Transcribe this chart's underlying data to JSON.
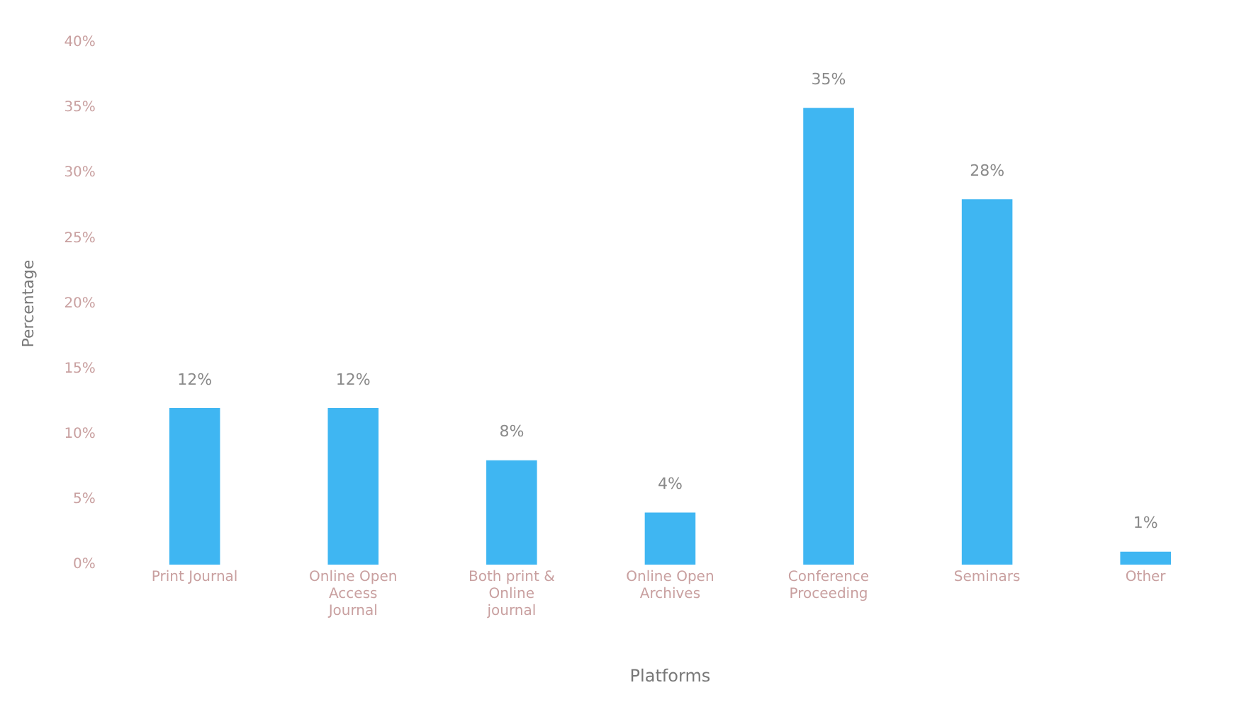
{
  "chart_data": {
    "type": "bar",
    "xlabel": "Platforms",
    "ylabel": "Percentage",
    "categories": [
      "Print Journal",
      "Online Open Access Journal",
      "Both print & Online journal",
      "Online Open Archives",
      "Conference Proceeding",
      "Seminars",
      "Other"
    ],
    "values": [
      12,
      12,
      8,
      4,
      35,
      28,
      1
    ],
    "value_labels": [
      "12%",
      "12%",
      "8%",
      "4%",
      "35%",
      "28%",
      "1%"
    ],
    "color": "#3fb6f2",
    "ylim": [
      0,
      40
    ],
    "yticks": [
      {
        "value": 0,
        "label": "0%"
      },
      {
        "value": 5,
        "label": "5%"
      },
      {
        "value": 10,
        "label": "10%"
      },
      {
        "value": 15,
        "label": "15%"
      },
      {
        "value": 20,
        "label": "20%"
      },
      {
        "value": 25,
        "label": "25%"
      },
      {
        "value": 30,
        "label": "30%"
      },
      {
        "value": 35,
        "label": "35%"
      },
      {
        "value": 40,
        "label": "40%"
      }
    ],
    "grid": false,
    "legend": false
  }
}
